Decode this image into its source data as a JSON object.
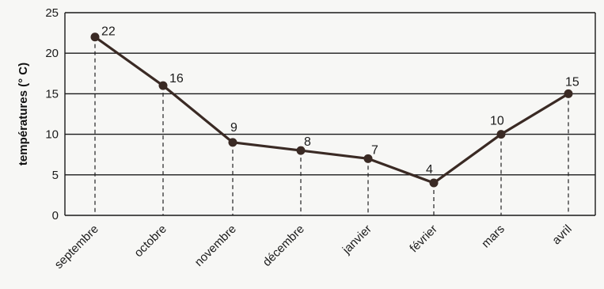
{
  "chart_data": {
    "type": "line",
    "title": "",
    "xlabel": "",
    "ylabel": "températures (° C)",
    "categories": [
      "septembre",
      "octobre",
      "novembre",
      "décembre",
      "janvier",
      "février",
      "mars",
      "avril"
    ],
    "series": [
      {
        "values": [
          22,
          16,
          9,
          8,
          7,
          4,
          10,
          15
        ]
      }
    ],
    "data_labels": [
      "22",
      "16",
      "9",
      "8",
      "7",
      "4",
      "10",
      "15"
    ],
    "ylim": [
      0,
      25
    ],
    "yticks": [
      0,
      5,
      10,
      15,
      20,
      25
    ],
    "grid": "horizontal",
    "drop_lines": true,
    "legend": "none",
    "colors": {
      "line": "#3a2a24",
      "marker": "#3a2a24",
      "grid": "#1a1a1a",
      "drop_line": "#222222"
    }
  }
}
